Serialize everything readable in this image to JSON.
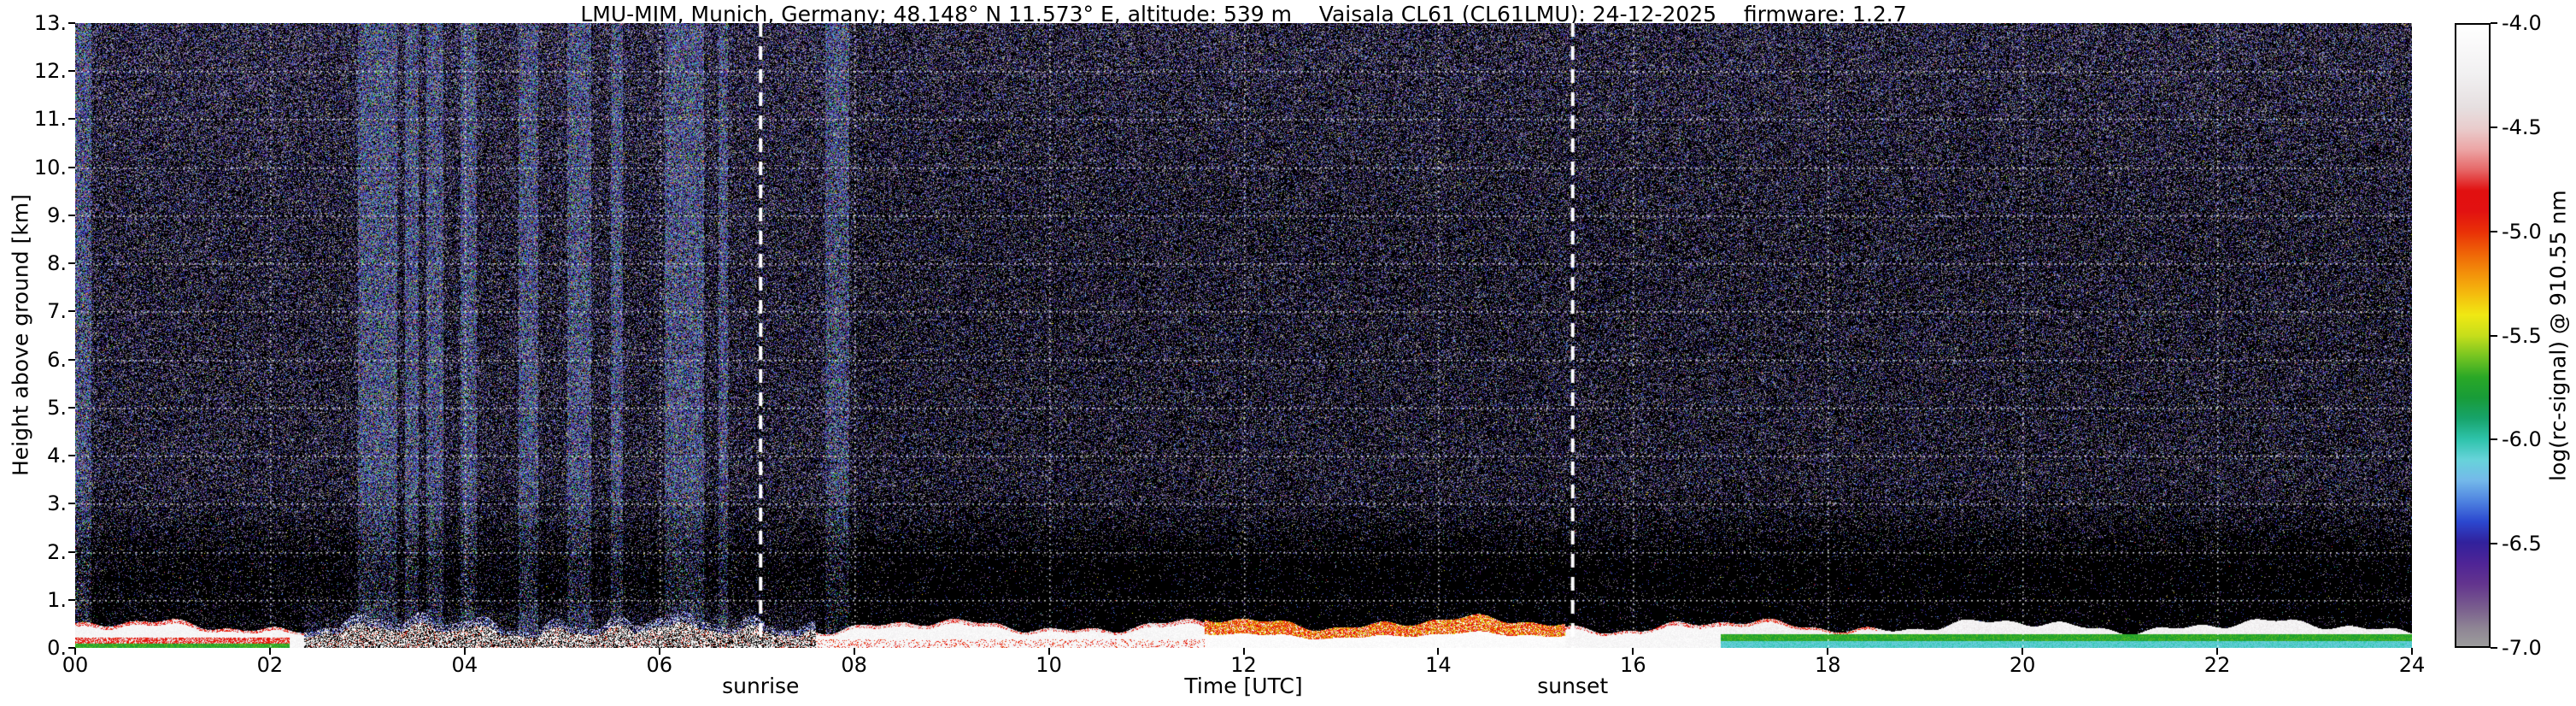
{
  "chart_data": {
    "type": "heatmap",
    "title": "LMU-MIM, Munich, Germany; 48.148° N 11.573° E, altitude: 539 m    Vaisala CL61 (CL61LMU): 24-12-2025    firmware: 1.2.7",
    "xlabel": "Time [UTC]",
    "ylabel": "Height above ground [km]",
    "xlim": [
      0,
      24
    ],
    "ylim": [
      0,
      13
    ],
    "grid": true,
    "background_color": "#000000",
    "x_tick_values": [
      0,
      2,
      4,
      6,
      8,
      10,
      12,
      14,
      16,
      18,
      20,
      22,
      24
    ],
    "x_tick_labels": [
      "00",
      "02",
      "04",
      "06",
      "08",
      "10",
      "12",
      "14",
      "16",
      "18",
      "20",
      "22",
      "24"
    ],
    "y_tick_values": [
      0,
      1,
      2,
      3,
      4,
      5,
      6,
      7,
      8,
      9,
      10,
      11,
      12,
      13
    ],
    "y_tick_labels": [
      "0.",
      "1.",
      "2.",
      "3.",
      "4.",
      "5.",
      "6.",
      "7.",
      "8.",
      "9.",
      "10.",
      "11.",
      "12.",
      "13."
    ],
    "annotations": [
      {
        "label": "sunrise",
        "x": 7.04,
        "style": "dashed-white-vline"
      },
      {
        "label": "sunset",
        "x": 15.38,
        "style": "dashed-white-vline"
      }
    ],
    "colorbar": {
      "label": "log(rc-signal) @ 910.55 nm",
      "value_range": [
        -7.0,
        -4.0
      ],
      "tick_values": [
        -4.0,
        -4.5,
        -5.0,
        -5.5,
        -6.0,
        -6.5,
        -7.0
      ],
      "tick_labels": [
        "-4.0",
        "-4.5",
        "-5.0",
        "-5.5",
        "-6.0",
        "-6.5",
        "-7.0"
      ],
      "stops": [
        [
          0.0,
          "#9c9c9c"
        ],
        [
          0.03,
          "#8e8494"
        ],
        [
          0.06,
          "#7a5f8e"
        ],
        [
          0.1,
          "#63348e"
        ],
        [
          0.133,
          "#4f2496"
        ],
        [
          0.167,
          "#31219c"
        ],
        [
          0.2,
          "#2b47cf"
        ],
        [
          0.233,
          "#4e82e0"
        ],
        [
          0.267,
          "#74b9ea"
        ],
        [
          0.3,
          "#67d3da"
        ],
        [
          0.333,
          "#2ec3ab"
        ],
        [
          0.367,
          "#17a36a"
        ],
        [
          0.4,
          "#189c38"
        ],
        [
          0.433,
          "#2aa826"
        ],
        [
          0.467,
          "#77c521"
        ],
        [
          0.5,
          "#c6de1b"
        ],
        [
          0.533,
          "#f0e813"
        ],
        [
          0.567,
          "#f4bb0e"
        ],
        [
          0.6,
          "#f3900a"
        ],
        [
          0.633,
          "#ef6307"
        ],
        [
          0.667,
          "#e93007"
        ],
        [
          0.7,
          "#e21111"
        ],
        [
          0.733,
          "#e11010"
        ],
        [
          0.767,
          "#e66868"
        ],
        [
          0.8,
          "#eca6a6"
        ],
        [
          0.833,
          "#e9cccc"
        ],
        [
          0.867,
          "#e6dfe0"
        ],
        [
          0.92,
          "#f1f0f1"
        ],
        [
          1.0,
          "#ffffff"
        ]
      ]
    },
    "features": {
      "description": "Dark noisy background speckled purple/blue above ~1.5 km; dense bright noisy columns (precip/noise bands) mostly 03-08 UTC; bright white near-surface aerosol layer 0-0.6 km all day with red/orange/yellow structure 12-15 UTC, green band 00-02 UTC, cyan+green layered bands after 17 UTC; dotted white grid; dashed white vertical lines at sunrise and sunset.",
      "bright_columns": [
        [
          0.0,
          0.16,
          1
        ],
        [
          2.9,
          3.3,
          1
        ],
        [
          3.38,
          3.52,
          1
        ],
        [
          3.6,
          3.78,
          1
        ],
        [
          3.95,
          4.12,
          1
        ],
        [
          4.55,
          4.75,
          1
        ],
        [
          5.05,
          5.3,
          1
        ],
        [
          5.5,
          5.62,
          1
        ],
        [
          6.05,
          6.45,
          1
        ],
        [
          6.6,
          6.7,
          1
        ],
        [
          7.7,
          7.95,
          1
        ]
      ],
      "patchy_surface_band": [
        2.35,
        7.6
      ],
      "surface_red_band": [
        11.6,
        15.3
      ],
      "surface_green_band": [
        0,
        2.2
      ],
      "surface_layered_after": 16.9,
      "surface_top_base_km": 0.46
    }
  }
}
